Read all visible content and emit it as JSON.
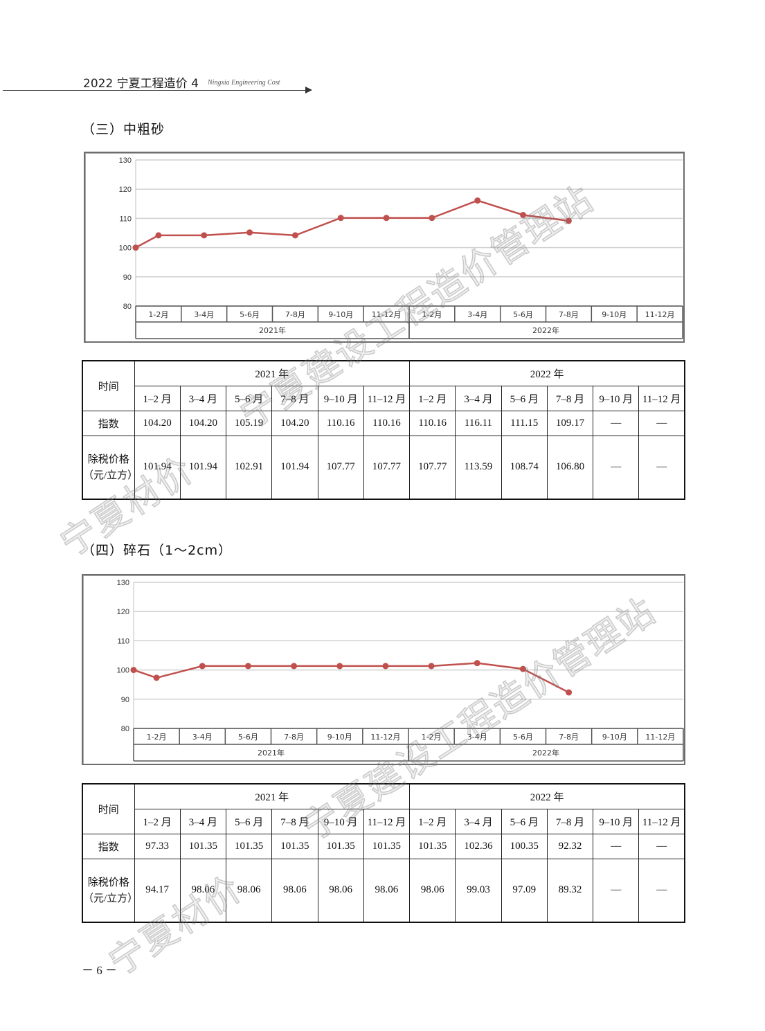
{
  "header": {
    "issue": "2022 宁夏工程造价 4",
    "english": "Ningxia Engineering Cost"
  },
  "sections": [
    {
      "title": "（三）中粗砂",
      "chart_data": {
        "type": "line",
        "ylim": [
          80,
          130
        ],
        "yticks": [
          80,
          90,
          100,
          110,
          120,
          130
        ],
        "grid": true,
        "categories": [
          "1-2月",
          "3-4月",
          "5-6月",
          "7-8月",
          "9-10月",
          "11-12月",
          "1-2月",
          "3-4月",
          "5-6月",
          "7-8月",
          "9-10月",
          "11-12月"
        ],
        "groups": [
          {
            "label": "2021年",
            "span": 6
          },
          {
            "label": "2022年",
            "span": 6
          }
        ],
        "baseline": 100,
        "values": [
          104.2,
          104.2,
          105.19,
          104.2,
          110.16,
          110.16,
          110.16,
          116.11,
          111.15,
          109.17,
          null,
          null
        ],
        "line_color": "#c0504d"
      },
      "table": {
        "time_label": "时间",
        "years": [
          "2021 年",
          "2022 年"
        ],
        "months": [
          "1–2 月",
          "3–4 月",
          "5–6 月",
          "7–8 月",
          "9–10 月",
          "11–12 月",
          "1–2 月",
          "3–4 月",
          "5–6 月",
          "7–8 月",
          "9–10 月",
          "11–12 月"
        ],
        "index_label": "指数",
        "index_values": [
          "104.20",
          "104.20",
          "105.19",
          "104.20",
          "110.16",
          "110.16",
          "110.16",
          "116.11",
          "111.15",
          "109.17",
          "—",
          "—"
        ],
        "price_label_1": "除税价格",
        "price_label_2": "（元/立方）",
        "price_values": [
          "101.94",
          "101.94",
          "102.91",
          "101.94",
          "107.77",
          "107.77",
          "107.77",
          "113.59",
          "108.74",
          "106.80",
          "—",
          "—"
        ]
      }
    },
    {
      "title": "（四）碎石（1～2cm）",
      "chart_data": {
        "type": "line",
        "ylim": [
          80,
          130
        ],
        "yticks": [
          80,
          90,
          100,
          110,
          120,
          130
        ],
        "grid": true,
        "categories": [
          "1-2月",
          "3-4月",
          "5-6月",
          "7-8月",
          "9-10月",
          "11-12月",
          "1-2月",
          "3-4月",
          "5-6月",
          "7-8月",
          "9-10月",
          "11-12月"
        ],
        "groups": [
          {
            "label": "2021年",
            "span": 6
          },
          {
            "label": "2022年",
            "span": 6
          }
        ],
        "baseline": 100,
        "values": [
          97.33,
          101.35,
          101.35,
          101.35,
          101.35,
          101.35,
          101.35,
          102.36,
          100.35,
          92.32,
          null,
          null
        ],
        "line_color": "#c0504d"
      },
      "table": {
        "time_label": "时间",
        "years": [
          "2021 年",
          "2022 年"
        ],
        "months": [
          "1–2 月",
          "3–4 月",
          "5–6 月",
          "7–8 月",
          "9–10 月",
          "11–12 月",
          "1–2 月",
          "3–4 月",
          "5–6 月",
          "7–8 月",
          "9–10 月",
          "11–12 月"
        ],
        "index_label": "指数",
        "index_values": [
          "97.33",
          "101.35",
          "101.35",
          "101.35",
          "101.35",
          "101.35",
          "101.35",
          "102.36",
          "100.35",
          "92.32",
          "—",
          "—"
        ],
        "price_label_1": "除税价格",
        "price_label_2": "（元/立方）",
        "price_values": [
          "94.17",
          "98.06",
          "98.06",
          "98.06",
          "98.06",
          "98.06",
          "98.06",
          "99.03",
          "97.09",
          "89.32",
          "—",
          "—"
        ]
      }
    }
  ],
  "watermarks": [
    "宁夏建设工程造价管理站",
    "宁夏材价",
    "宁夏建设工程造价管理站",
    "宁夏材价"
  ],
  "page_number": "－ 6 －"
}
